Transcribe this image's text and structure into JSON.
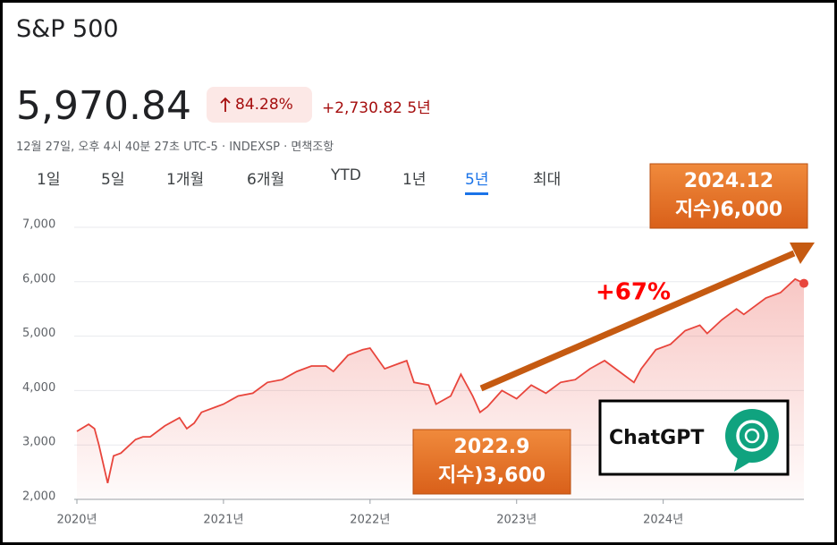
{
  "header": {
    "title": "S&P 500",
    "price": "5,970.84",
    "change_percent": "84.28%",
    "change_points": "+2,730.82 5년",
    "subtitle": "12월 27일, 오후 4시 40분 27초 UTC-5 · INDEXSP · 면책조항"
  },
  "tabs": [
    "1일",
    "5일",
    "1개월",
    "6개월",
    "YTD",
    "1년",
    "5년",
    "최대"
  ],
  "selected_tab": 6,
  "chart_data": {
    "type": "line",
    "color": "#e8453c",
    "x": [
      2020.0,
      2020.08,
      2020.12,
      2020.15,
      2020.21,
      2020.25,
      2020.3,
      2020.4,
      2020.45,
      2020.5,
      2020.6,
      2020.7,
      2020.75,
      2020.8,
      2020.85,
      2020.95,
      2021.0,
      2021.1,
      2021.2,
      2021.3,
      2021.4,
      2021.5,
      2021.6,
      2021.7,
      2021.75,
      2021.85,
      2021.95,
      2022.0,
      2022.1,
      2022.2,
      2022.25,
      2022.3,
      2022.4,
      2022.45,
      2022.55,
      2022.62,
      2022.7,
      2022.75,
      2022.8,
      2022.85,
      2022.9,
      2023.0,
      2023.1,
      2023.2,
      2023.3,
      2023.4,
      2023.5,
      2023.6,
      2023.7,
      2023.8,
      2023.85,
      2023.95,
      2024.05,
      2024.15,
      2024.25,
      2024.3,
      2024.4,
      2024.5,
      2024.55,
      2024.6,
      2024.7,
      2024.8,
      2024.9,
      2024.96
    ],
    "values": [
      3250,
      3380,
      3300,
      3000,
      2300,
      2800,
      2850,
      3100,
      3150,
      3150,
      3350,
      3500,
      3300,
      3400,
      3600,
      3700,
      3750,
      3900,
      3950,
      4150,
      4200,
      4350,
      4450,
      4450,
      4350,
      4650,
      4750,
      4780,
      4400,
      4500,
      4550,
      4150,
      4100,
      3750,
      3900,
      4300,
      3900,
      3600,
      3700,
      3850,
      4000,
      3850,
      4100,
      3950,
      4150,
      4200,
      4400,
      4550,
      4350,
      4150,
      4400,
      4750,
      4850,
      5100,
      5200,
      5050,
      5300,
      5500,
      5400,
      5500,
      5700,
      5800,
      6050,
      5970.84
    ],
    "xlim": [
      2020,
      2024.96
    ],
    "ylim": [
      2000,
      7000
    ],
    "xticks": [
      {
        "value": 2020,
        "label": "2020년"
      },
      {
        "value": 2021,
        "label": "2021년"
      },
      {
        "value": 2022,
        "label": "2022년"
      },
      {
        "value": 2023,
        "label": "2023년"
      },
      {
        "value": 2024,
        "label": "2024년"
      }
    ],
    "yticks": [
      {
        "value": 2000,
        "label": "2,000"
      },
      {
        "value": 3000,
        "label": "3,000"
      },
      {
        "value": 4000,
        "label": "4,000"
      },
      {
        "value": 5000,
        "label": "5,000"
      },
      {
        "value": 6000,
        "label": "6,000"
      },
      {
        "value": 7000,
        "label": "7,000"
      }
    ],
    "grid": true,
    "annotations": [
      {
        "lines": [
          "2024.12",
          "지수)6,000"
        ]
      },
      {
        "lines": [
          "2022.9",
          "지수)3,600"
        ]
      }
    ],
    "change_label": "+67%",
    "badge": "ChatGPT"
  }
}
